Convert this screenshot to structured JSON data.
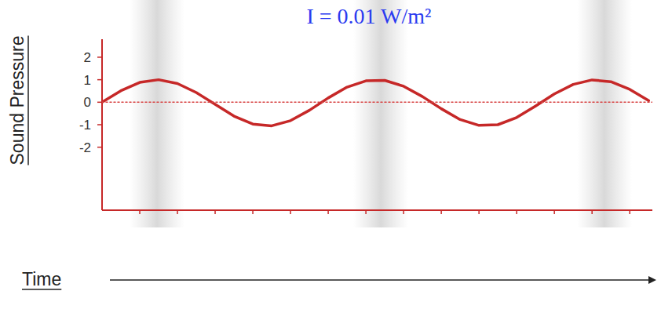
{
  "chart_data": {
    "type": "line",
    "title": "I = 0.01 W/m²",
    "x_label": "Time",
    "y_label": "Sound Pressure",
    "xlim": [
      0,
      14.6
    ],
    "ylim": [
      -4.8,
      2.8
    ],
    "xticks": [
      1,
      2,
      3,
      4,
      5,
      6,
      7,
      8,
      9,
      10,
      11,
      12,
      13,
      14
    ],
    "yticks": [
      -2,
      -1,
      0,
      1,
      2
    ],
    "tick_labels": "y",
    "grid": false,
    "series": [
      {
        "color": "#c62828",
        "line_style": "solid",
        "x": [
          0,
          0.5,
          1,
          1.5,
          2,
          2.5,
          3,
          3.5,
          4,
          4.5,
          5,
          5.5,
          6,
          6.5,
          7,
          7.5,
          8,
          8.5,
          9,
          9.5,
          10,
          10.5,
          11,
          11.5,
          12,
          12.5,
          13,
          13.5,
          14,
          14.5
        ],
        "values": [
          0,
          0.51,
          0.88,
          1.0,
          0.83,
          0.43,
          -0.09,
          -0.62,
          -0.97,
          -1.05,
          -0.82,
          -0.36,
          0.19,
          0.67,
          0.95,
          0.97,
          0.71,
          0.25,
          -0.29,
          -0.77,
          -1.03,
          -1.0,
          -0.68,
          -0.17,
          0.37,
          0.79,
          0.99,
          0.91,
          0.57,
          0.07
        ]
      },
      {
        "color": "#d84343",
        "line_style": "dotted",
        "x": [
          0,
          14.6
        ],
        "values": [
          0,
          0
        ]
      }
    ]
  }
}
